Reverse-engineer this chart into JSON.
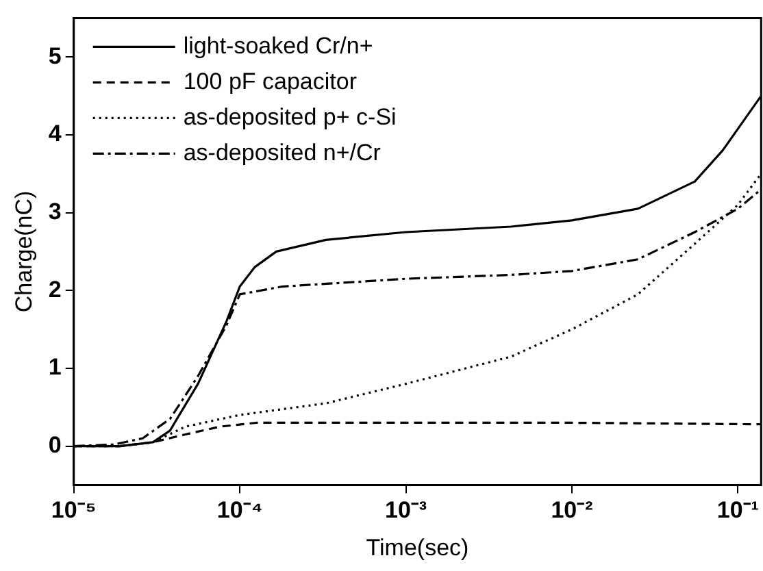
{
  "chart_data": {
    "type": "line",
    "xlabel": "Time(sec)",
    "ylabel": "Charge(nC)",
    "log": "x",
    "xlim": [
      1e-05,
      0.138
    ],
    "xticks": [
      {
        "value": 1e-05,
        "label": "10⁻⁵"
      },
      {
        "value": 0.0001,
        "label": "10⁻⁴"
      },
      {
        "value": 0.001,
        "label": "10⁻³"
      },
      {
        "value": 0.01,
        "label": "10⁻²"
      },
      {
        "value": 0.1,
        "label": "10⁻¹"
      }
    ],
    "ylim": [
      -0.5,
      5.5
    ],
    "yticks": [
      0,
      1,
      2,
      3,
      4,
      5
    ],
    "grid": false,
    "legend": "top left",
    "marker": "none",
    "series": [
      {
        "name": "light-soaked Cr/n+",
        "color": "#000000",
        "line_style": "solid",
        "x": [
          1e-05,
          1.9e-05,
          3e-05,
          3.8e-05,
          5.6e-05,
          8.3e-05,
          0.0001,
          0.000123,
          0.000166,
          0.00033,
          0.001,
          0.0043,
          0.01,
          0.025,
          0.055,
          0.081,
          0.138
        ],
        "values": [
          0,
          0,
          0.05,
          0.2,
          0.8,
          1.6,
          2.05,
          2.3,
          2.5,
          2.65,
          2.75,
          2.82,
          2.9,
          3.05,
          3.4,
          3.8,
          4.5
        ]
      },
      {
        "name": "100 pF capacitor",
        "color": "#000000",
        "line_style": "dashed",
        "x": [
          1e-05,
          1.9e-05,
          3e-05,
          4.7e-05,
          7.6e-05,
          0.000126,
          0.001,
          0.01,
          0.138
        ],
        "values": [
          0,
          0,
          0.05,
          0.15,
          0.25,
          0.3,
          0.3,
          0.3,
          0.28
        ]
      },
      {
        "name": "as-deposited p+ c-Si",
        "color": "#000000",
        "line_style": "dotted",
        "x": [
          1e-05,
          1.9e-05,
          3e-05,
          4.7e-05,
          0.0001,
          0.00033,
          0.001,
          0.0043,
          0.01,
          0.025,
          0.055,
          0.1,
          0.138
        ],
        "values": [
          0,
          0,
          0.05,
          0.25,
          0.4,
          0.55,
          0.8,
          1.15,
          1.5,
          1.95,
          2.6,
          3.1,
          3.5
        ]
      },
      {
        "name": "as-deposited n+/Cr",
        "color": "#000000",
        "line_style": "dashdot",
        "x": [
          1e-05,
          1.74e-05,
          2.6e-05,
          3.8e-05,
          5.6e-05,
          8.3e-05,
          0.0001,
          0.00018,
          0.001,
          0.0043,
          0.01,
          0.025,
          0.055,
          0.1,
          0.138
        ],
        "values": [
          0,
          0.02,
          0.1,
          0.35,
          0.9,
          1.55,
          1.95,
          2.05,
          2.15,
          2.2,
          2.25,
          2.4,
          2.75,
          3.05,
          3.3
        ]
      }
    ]
  }
}
